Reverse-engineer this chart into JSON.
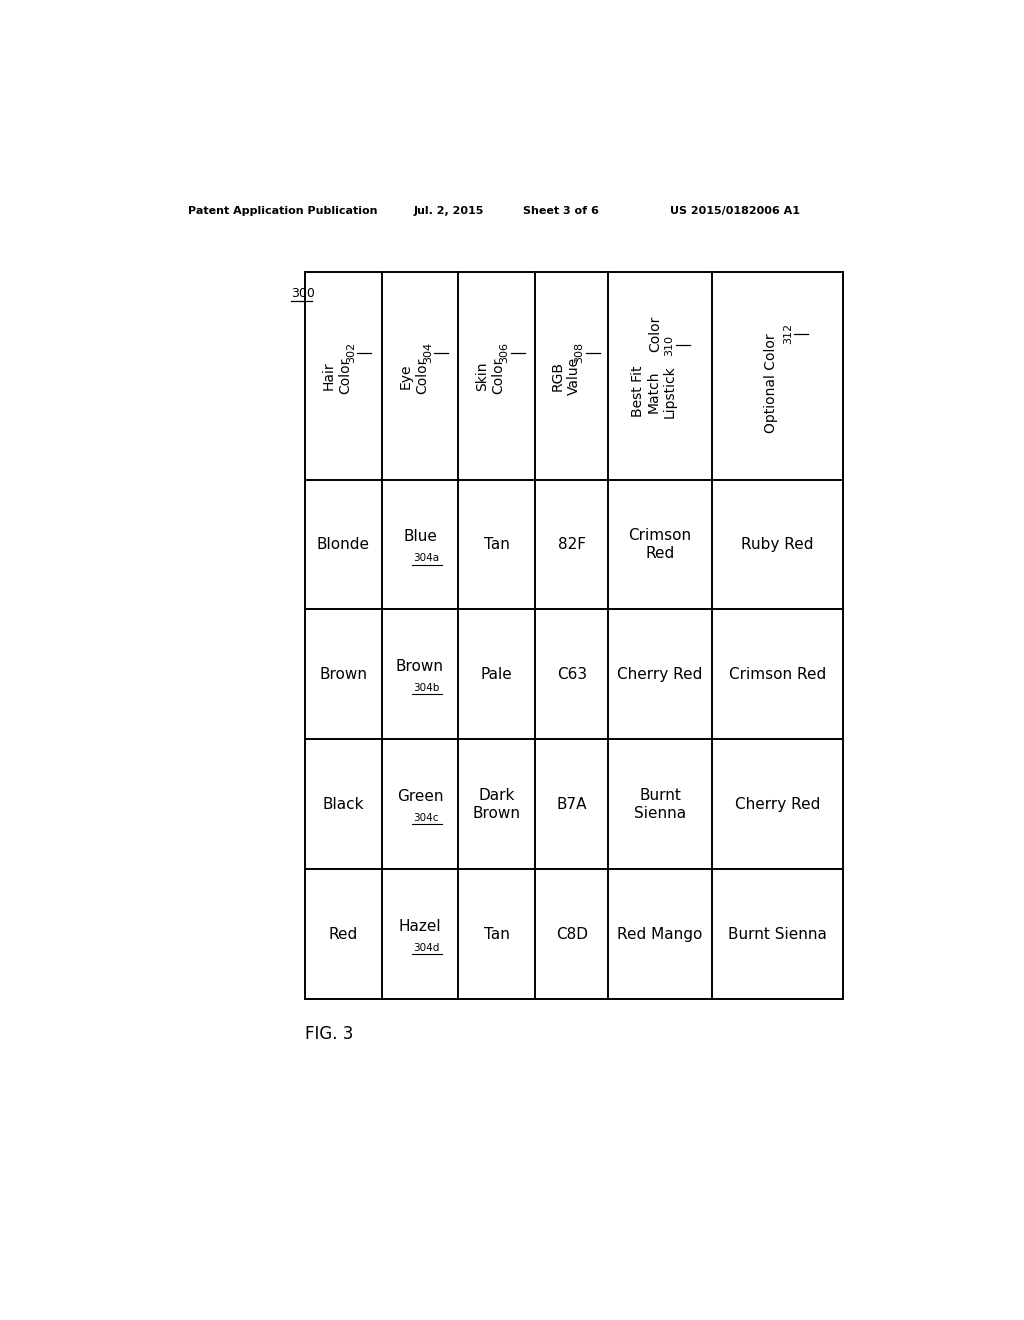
{
  "header_text": "Patent Application Publication",
  "header_date": "Jul. 2, 2015",
  "header_sheet": "Sheet 3 of 6",
  "header_patent": "US 2015/0182006 A1",
  "fig_label": "FIG. 3",
  "table_ref": "300",
  "col_header_labels": [
    "Hair\nColor",
    "Eye\nColor",
    "Skin\nColor",
    "RGB\nValue",
    "Best Fit\nMatch\nLipstick\nColor",
    "Optional Color"
  ],
  "col_header_refs": [
    "302",
    "304",
    "306",
    "308",
    "310",
    "312"
  ],
  "rows": [
    [
      "Blonde",
      "Blue",
      "304a",
      "Tan",
      "82F",
      "Crimson\nRed",
      "Ruby Red"
    ],
    [
      "Brown",
      "Brown",
      "304b",
      "Pale",
      "C63",
      "Cherry Red",
      "Crimson Red"
    ],
    [
      "Black",
      "Green",
      "304c",
      "Dark\nBrown",
      "B7A",
      "Burnt\nSienna",
      "Cherry Red"
    ],
    [
      "Red",
      "Hazel",
      "304d",
      "Tan",
      "C8D",
      "Red Mango",
      "Burnt Sienna"
    ]
  ],
  "background_color": "#ffffff",
  "table_border_color": "#000000",
  "text_color": "#000000"
}
